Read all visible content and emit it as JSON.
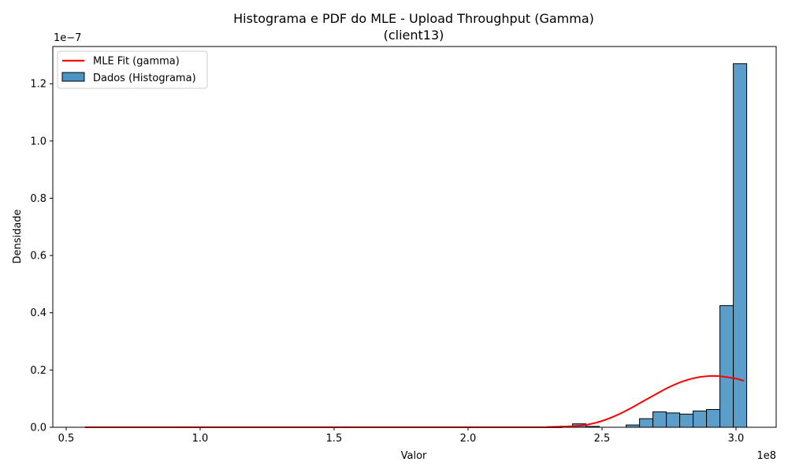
{
  "chart_data": {
    "type": "bar",
    "title_line1": "Histograma e PDF do MLE - Upload Throughput (Gamma)",
    "title_line2": "(client13)",
    "xlabel": "Valor",
    "ylabel": "Densidade",
    "x_offset_label": "1e8",
    "y_offset_label": "1e−7",
    "xlim": [
      0.45,
      3.15
    ],
    "ylim": [
      0,
      1.33
    ],
    "x_ticks": [
      0.5,
      1.0,
      1.5,
      2.0,
      2.5,
      3.0
    ],
    "x_tick_labels": [
      "0.5",
      "1.0",
      "1.5",
      "2.0",
      "2.5",
      "3.0"
    ],
    "y_ticks": [
      0.0,
      0.2,
      0.4,
      0.6,
      0.8,
      1.0,
      1.2
    ],
    "y_tick_labels": [
      "0.0",
      "0.2",
      "0.4",
      "0.6",
      "0.8",
      "1.0",
      "1.2"
    ],
    "legend_position": "upper-left",
    "legend": [
      {
        "label": "MLE Fit (gamma)",
        "kind": "line",
        "color": "#ff0000"
      },
      {
        "label": "Dados (Histograma)",
        "kind": "patch",
        "color": "#4c92c3"
      }
    ],
    "histogram": {
      "name": "Dados (Histograma)",
      "color": "#5a9ec9",
      "edge_color": "#000000",
      "bins": [
        {
          "x0": 2.39,
          "x1": 2.44,
          "density": 0.012
        },
        {
          "x0": 2.44,
          "x1": 2.49,
          "density": 0.003
        },
        {
          "x0": 2.59,
          "x1": 2.64,
          "density": 0.008
        },
        {
          "x0": 2.64,
          "x1": 2.69,
          "density": 0.03
        },
        {
          "x0": 2.69,
          "x1": 2.74,
          "density": 0.054
        },
        {
          "x0": 2.74,
          "x1": 2.79,
          "density": 0.05
        },
        {
          "x0": 2.79,
          "x1": 2.84,
          "density": 0.046
        },
        {
          "x0": 2.84,
          "x1": 2.89,
          "density": 0.057
        },
        {
          "x0": 2.89,
          "x1": 2.94,
          "density": 0.062
        },
        {
          "x0": 2.94,
          "x1": 2.99,
          "density": 0.425
        },
        {
          "x0": 2.99,
          "x1": 3.04,
          "density": 1.27
        }
      ]
    },
    "pdf_curve": {
      "name": "MLE Fit (gamma)",
      "color": "#ff0000",
      "x": [
        0.57,
        2.2,
        2.3,
        2.4,
        2.45,
        2.5,
        2.55,
        2.6,
        2.65,
        2.7,
        2.75,
        2.8,
        2.85,
        2.9,
        2.93,
        2.96,
        3.0,
        3.03
      ],
      "y": [
        0.0,
        0.0,
        0.001,
        0.004,
        0.01,
        0.022,
        0.04,
        0.063,
        0.089,
        0.115,
        0.14,
        0.16,
        0.173,
        0.179,
        0.179,
        0.176,
        0.17,
        0.162
      ]
    }
  }
}
